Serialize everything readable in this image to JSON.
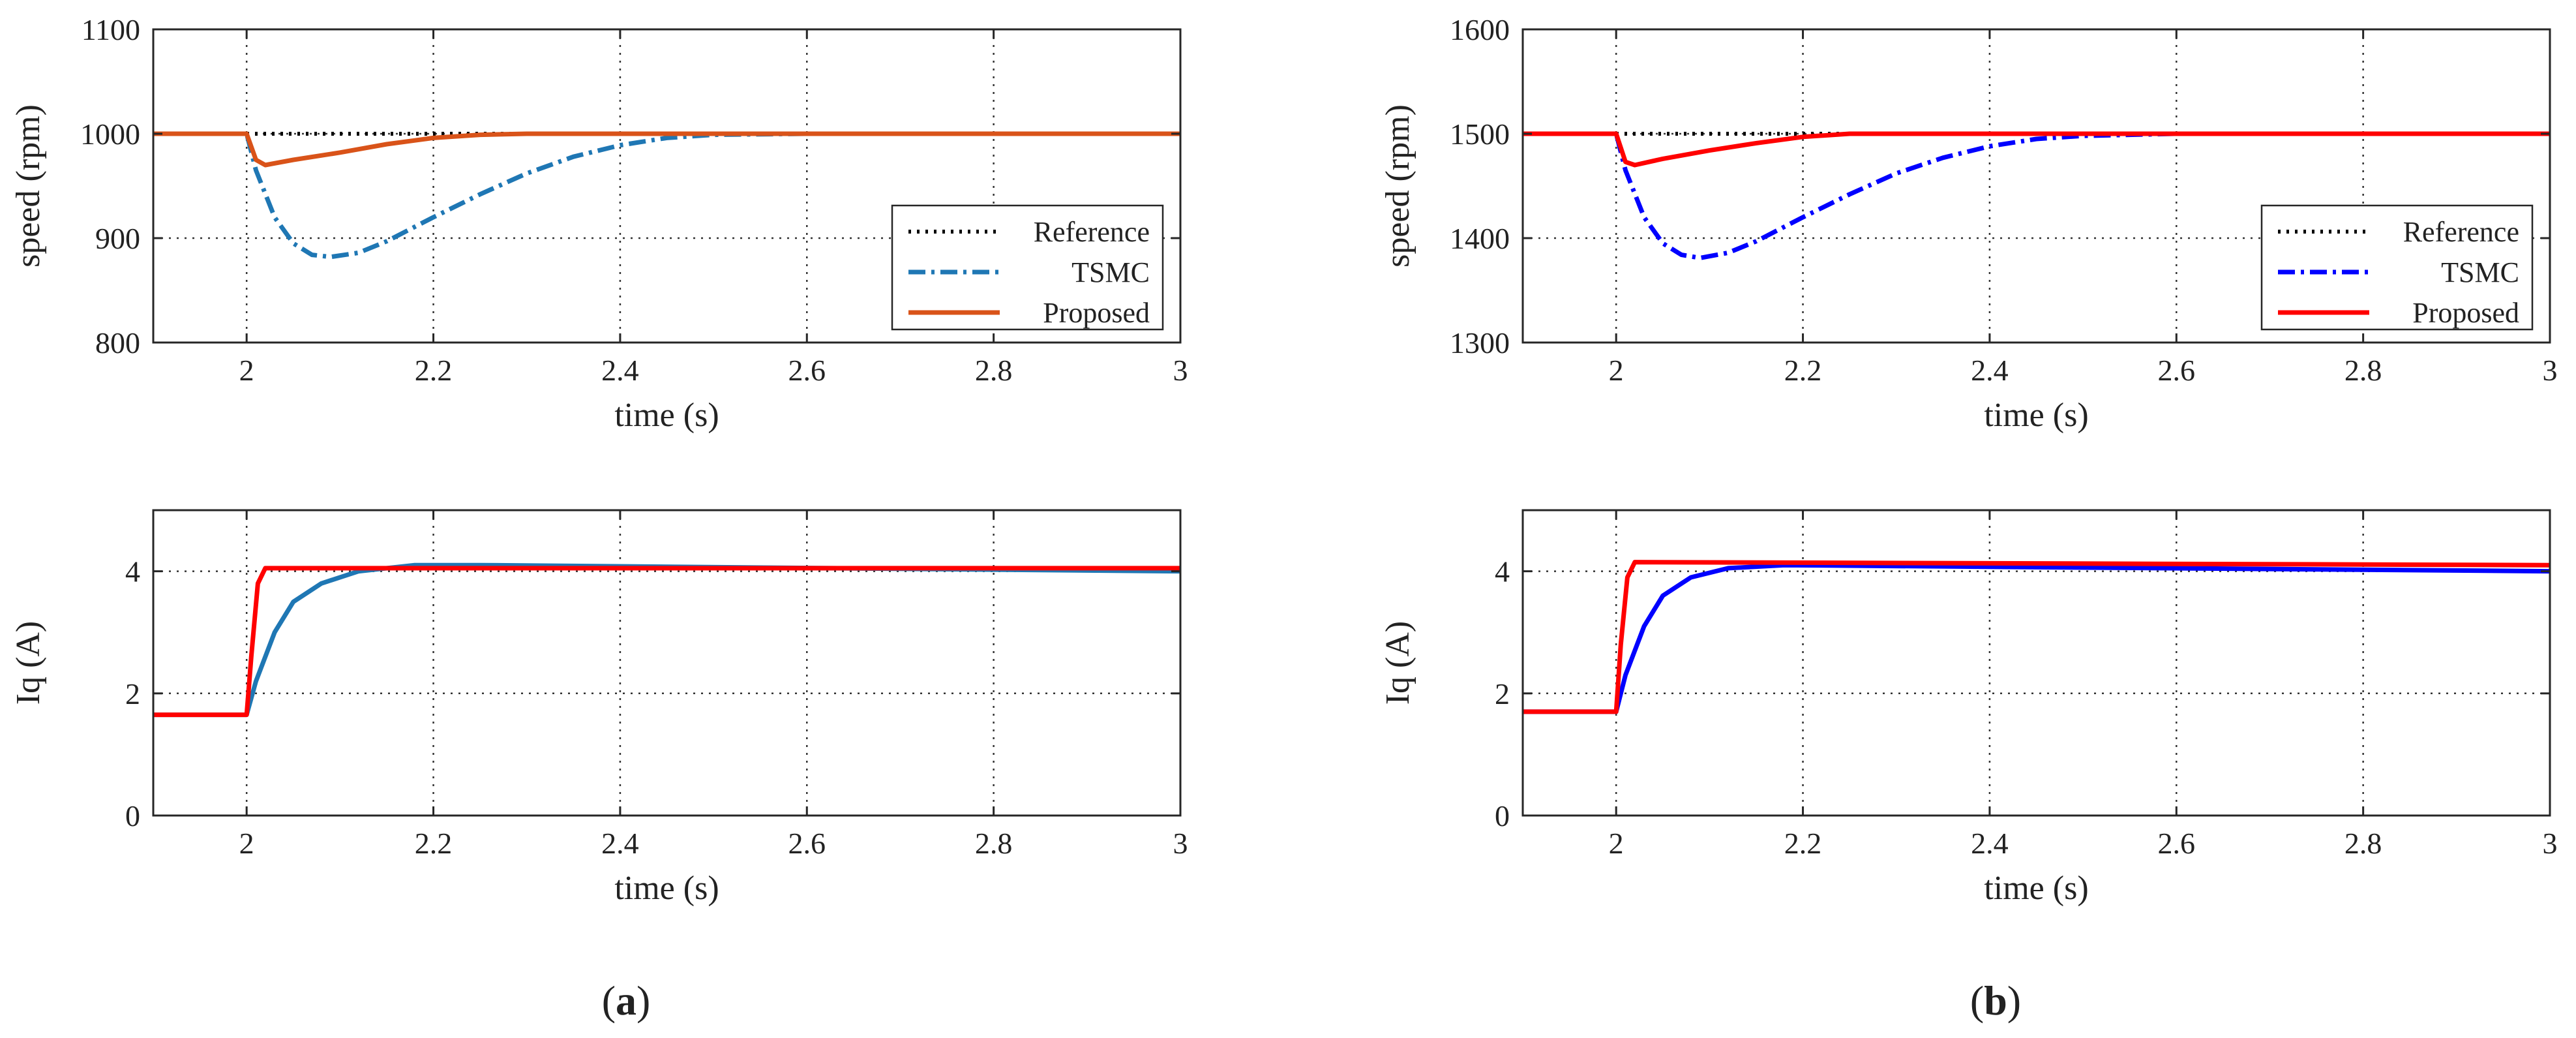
{
  "chart_data": [
    {
      "panel": "(a)",
      "type": "line",
      "xlabel": "time (s)",
      "ylabel": "speed (rpm)",
      "xlim": [
        1.9,
        3.0
      ],
      "ylim": [
        800,
        1100
      ],
      "xticks": [
        2,
        2.2,
        2.4,
        2.6,
        2.8,
        3
      ],
      "xtick_labels": [
        "2",
        "2.2",
        "2.4",
        "2.6",
        "2.8",
        "3"
      ],
      "yticks": [
        800,
        900,
        1000,
        1100
      ],
      "ytick_labels": [
        "800",
        "900",
        "1000",
        "1100"
      ],
      "grid": true,
      "legend": "inside right",
      "series": [
        {
          "name": "Reference",
          "color": "#000000",
          "style": "dotted",
          "x": [
            1.9,
            2.0,
            3.0
          ],
          "values": [
            1000,
            1000,
            1000
          ]
        },
        {
          "name": "TSMC",
          "color": "#1f77b4",
          "style": "dashdot",
          "x": [
            1.9,
            2.0,
            2.01,
            2.03,
            2.05,
            2.07,
            2.09,
            2.12,
            2.15,
            2.2,
            2.25,
            2.3,
            2.35,
            2.4,
            2.45,
            2.5,
            2.6,
            3.0
          ],
          "values": [
            1000,
            1000,
            965,
            920,
            895,
            884,
            882,
            886,
            897,
            920,
            942,
            962,
            978,
            989,
            996,
            999,
            1000,
            1000
          ]
        },
        {
          "name": "Proposed",
          "color": "#d95319",
          "style": "solid",
          "x": [
            1.9,
            2.0,
            2.01,
            2.02,
            2.05,
            2.1,
            2.15,
            2.2,
            2.25,
            2.3,
            2.4,
            3.0
          ],
          "values": [
            1000,
            1000,
            975,
            970,
            975,
            982,
            990,
            996,
            999,
            1000,
            1000,
            1000
          ]
        }
      ]
    },
    {
      "panel": "(a)",
      "type": "line",
      "xlabel": "time (s)",
      "ylabel": "Iq (A)",
      "xlim": [
        1.9,
        3.0
      ],
      "ylim": [
        0,
        5
      ],
      "xticks": [
        2,
        2.2,
        2.4,
        2.6,
        2.8,
        3
      ],
      "xtick_labels": [
        "2",
        "2.2",
        "2.4",
        "2.6",
        "2.8",
        "3"
      ],
      "yticks": [
        0,
        2,
        4
      ],
      "ytick_labels": [
        "0",
        "2",
        "4"
      ],
      "grid": true,
      "series": [
        {
          "name": "TSMC",
          "color": "#1f77b4",
          "style": "solid",
          "x": [
            1.9,
            2.0,
            2.01,
            2.03,
            2.05,
            2.08,
            2.12,
            2.18,
            2.25,
            3.0
          ],
          "values": [
            1.65,
            1.65,
            2.2,
            3.0,
            3.5,
            3.8,
            4.0,
            4.1,
            4.1,
            4.0
          ]
        },
        {
          "name": "Proposed",
          "color": "#ff0000",
          "style": "solid",
          "x": [
            1.9,
            2.0,
            2.005,
            2.012,
            2.02,
            3.0
          ],
          "values": [
            1.65,
            1.65,
            2.6,
            3.8,
            4.05,
            4.05
          ]
        }
      ]
    },
    {
      "panel": "(b)",
      "type": "line",
      "xlabel": "time (s)",
      "ylabel": "speed (rpm)",
      "xlim": [
        1.9,
        3.0
      ],
      "ylim": [
        1300,
        1600
      ],
      "xticks": [
        2,
        2.2,
        2.4,
        2.6,
        2.8,
        3
      ],
      "xtick_labels": [
        "2",
        "2.2",
        "2.4",
        "2.6",
        "2.8",
        "3"
      ],
      "yticks": [
        1300,
        1400,
        1500,
        1600
      ],
      "ytick_labels": [
        "1300",
        "1400",
        "1500",
        "1600"
      ],
      "grid": true,
      "legend": "inside right",
      "series": [
        {
          "name": "Reference",
          "color": "#000000",
          "style": "dotted",
          "x": [
            1.9,
            2.0,
            3.0
          ],
          "values": [
            1500,
            1500,
            1500
          ]
        },
        {
          "name": "TSMC",
          "color": "#0000ff",
          "style": "dashdot",
          "x": [
            1.9,
            2.0,
            2.01,
            2.03,
            2.05,
            2.07,
            2.09,
            2.12,
            2.15,
            2.2,
            2.25,
            2.3,
            2.35,
            2.4,
            2.45,
            2.5,
            2.6,
            3.0
          ],
          "values": [
            1500,
            1500,
            1465,
            1420,
            1395,
            1384,
            1381,
            1386,
            1397,
            1420,
            1442,
            1462,
            1477,
            1488,
            1495,
            1498,
            1500,
            1500
          ]
        },
        {
          "name": "Proposed",
          "color": "#ff0000",
          "style": "solid",
          "x": [
            1.9,
            2.0,
            2.01,
            2.02,
            2.05,
            2.1,
            2.15,
            2.2,
            2.25,
            2.3,
            2.4,
            3.0
          ],
          "values": [
            1500,
            1500,
            1473,
            1470,
            1476,
            1484,
            1491,
            1497,
            1500,
            1500,
            1500,
            1500
          ]
        }
      ]
    },
    {
      "panel": "(b)",
      "type": "line",
      "xlabel": "time (s)",
      "ylabel": "Iq (A)",
      "xlim": [
        1.9,
        3.0
      ],
      "ylim": [
        0,
        5
      ],
      "xticks": [
        2,
        2.2,
        2.4,
        2.6,
        2.8,
        3
      ],
      "xtick_labels": [
        "2",
        "2.2",
        "2.4",
        "2.6",
        "2.8",
        "3"
      ],
      "yticks": [
        0,
        2,
        4
      ],
      "ytick_labels": [
        "0",
        "2",
        "4"
      ],
      "grid": true,
      "series": [
        {
          "name": "TSMC",
          "color": "#0000ff",
          "style": "solid",
          "x": [
            1.9,
            2.0,
            2.01,
            2.03,
            2.05,
            2.08,
            2.12,
            2.18,
            3.0
          ],
          "values": [
            1.7,
            1.7,
            2.3,
            3.1,
            3.6,
            3.9,
            4.05,
            4.1,
            4.0
          ]
        },
        {
          "name": "Proposed",
          "color": "#ff0000",
          "style": "solid",
          "x": [
            1.9,
            2.0,
            2.005,
            2.012,
            2.02,
            3.0
          ],
          "values": [
            1.7,
            1.7,
            2.8,
            3.9,
            4.15,
            4.1
          ]
        }
      ]
    }
  ],
  "panel_labels": {
    "a_open": "(",
    "a_letter": "a",
    "a_close": ")",
    "b_open": "(",
    "b_letter": "b",
    "b_close": ")"
  }
}
